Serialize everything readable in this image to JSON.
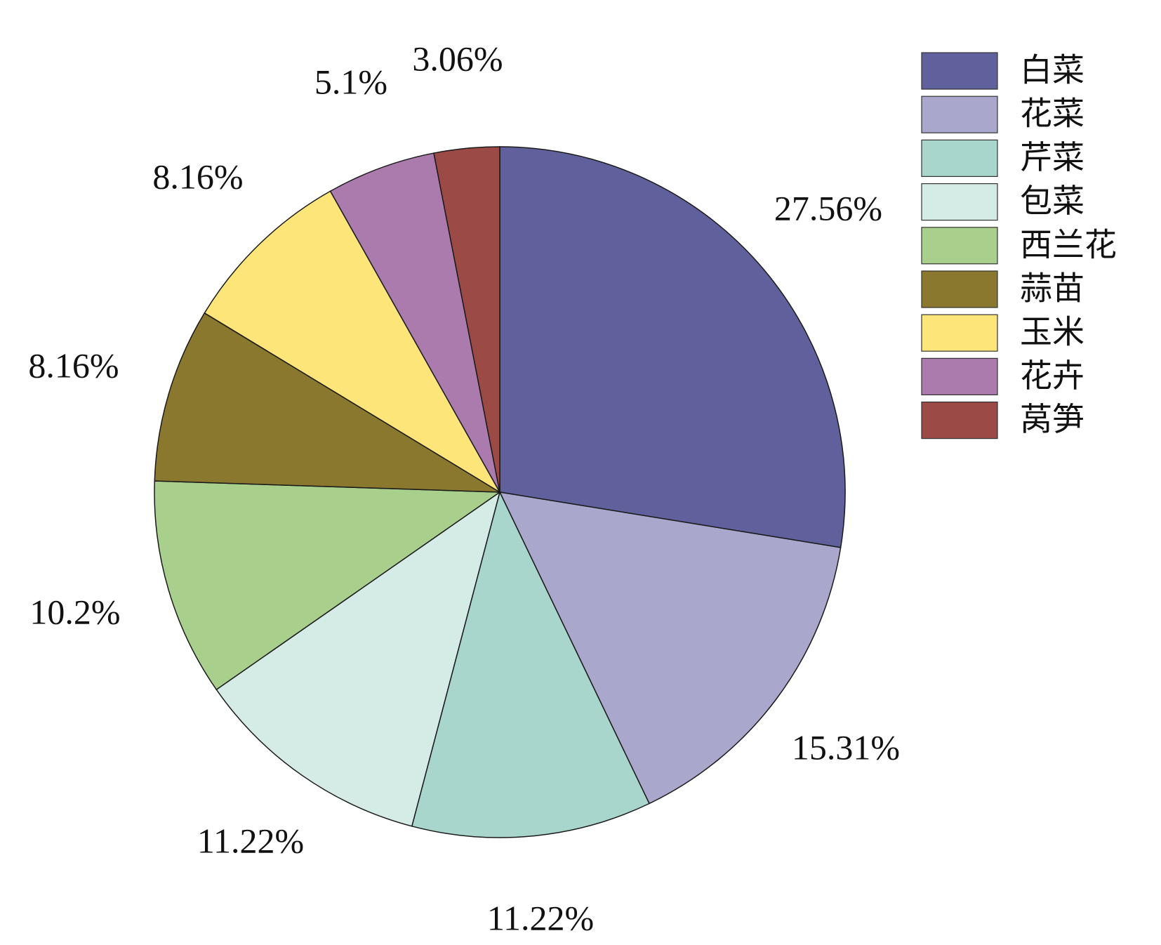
{
  "chart_data": {
    "type": "pie",
    "start_angle_deg": 0,
    "direction": "clockwise",
    "legend_position": "top-right",
    "slices": [
      {
        "name": "白菜",
        "value": 27.56,
        "label": "27.56%",
        "color": "#60619C"
      },
      {
        "name": "花菜",
        "value": 15.31,
        "label": "15.31%",
        "color": "#A9A7CC"
      },
      {
        "name": "芹菜",
        "value": 11.22,
        "label": "11.22%",
        "color": "#A8D5CC"
      },
      {
        "name": "包菜",
        "value": 11.22,
        "label": "11.22%",
        "color": "#D5EBE5"
      },
      {
        "name": "西兰花",
        "value": 10.2,
        "label": "10.2%",
        "color": "#A9CF8D"
      },
      {
        "name": "蒜苗",
        "value": 8.16,
        "label": "8.16%",
        "color": "#8A782F"
      },
      {
        "name": "玉米",
        "value": 8.16,
        "label": "8.16%",
        "color": "#FEE57A"
      },
      {
        "name": "花卉",
        "value": 5.1,
        "label": "5.1%",
        "color": "#AC7BAD"
      },
      {
        "name": "莴笋",
        "value": 3.06,
        "label": "3.06%",
        "color": "#9B4A46"
      }
    ]
  }
}
